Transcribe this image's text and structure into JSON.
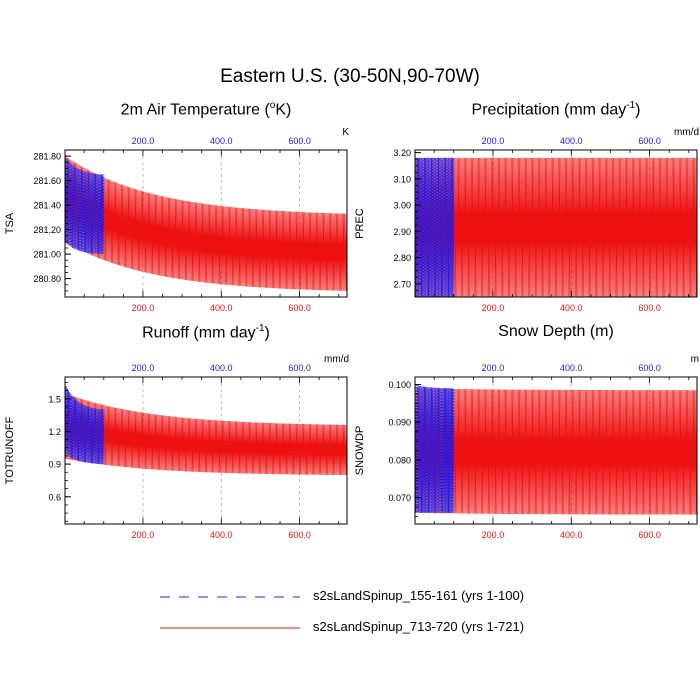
{
  "main_title": "Eastern U.S. (30-50N,90-70W)",
  "legend": [
    {
      "label": "s2sLandSpinup_155-161 (yrs 1-100)",
      "color": "#2222ee",
      "style": "dashed"
    },
    {
      "label": "s2sLandSpinup_713-720 (yrs 1-721)",
      "color": "#ee1111",
      "style": "solid"
    }
  ],
  "colors": {
    "blue": "#1a1aee",
    "red": "#ee1111",
    "grid": "#aaaaaa",
    "axis": "#000000"
  },
  "chart_data": [
    {
      "type": "line",
      "title": "2m Air Temperature (",
      "title_sup": "o",
      "title_suffix": "K)",
      "units": "K",
      "ylabel": "TSA",
      "xlim": [
        1,
        721
      ],
      "ylim": [
        280.65,
        281.85
      ],
      "xticks": [
        200,
        400,
        600
      ],
      "xtick_labels_bottom": [
        "200.0",
        "400.0",
        "600.0"
      ],
      "xtick_labels_top": [
        "200.0",
        "400.0",
        "600.0"
      ],
      "yticks": [
        280.8,
        281.0,
        281.2,
        281.4,
        281.6,
        281.8
      ],
      "ytick_labels": [
        "280.80",
        "281.00",
        "281.20",
        "281.40",
        "281.60",
        "281.80"
      ],
      "series": [
        {
          "name": "s2sLandSpinup_155-161 (yrs 1-100)",
          "color": "blue",
          "x_range": [
            1,
            100
          ],
          "max_start": 281.8,
          "max_end": 281.65,
          "min_start": 281.1,
          "min_end": 281.0
        },
        {
          "name": "s2sLandSpinup_713-720 (yrs 1-721)",
          "color": "red",
          "x_range": [
            1,
            721
          ],
          "max_start": 281.8,
          "max_end": 281.33,
          "min_start": 281.1,
          "min_end": 280.7
        }
      ]
    },
    {
      "type": "line",
      "title": "Precipitation (mm day",
      "title_sup": "-1",
      "title_suffix": ")",
      "units": "mm/d",
      "ylabel": "PREC",
      "xlim": [
        1,
        721
      ],
      "ylim": [
        2.65,
        3.21
      ],
      "xticks": [
        200,
        400,
        600
      ],
      "xtick_labels_bottom": [
        "200.0",
        "400.0",
        "600.0"
      ],
      "xtick_labels_top": [
        "200.0",
        "400.0",
        "600.0"
      ],
      "yticks": [
        2.7,
        2.8,
        2.9,
        3.0,
        3.1,
        3.2
      ],
      "ytick_labels": [
        "2.70",
        "2.80",
        "2.90",
        "3.00",
        "3.10",
        "3.20"
      ],
      "series": [
        {
          "name": "s2sLandSpinup_155-161 (yrs 1-100)",
          "color": "blue",
          "x_range": [
            1,
            100
          ],
          "max_start": 3.18,
          "max_end": 3.18,
          "min_start": 2.65,
          "min_end": 2.65
        },
        {
          "name": "s2sLandSpinup_713-720 (yrs 1-721)",
          "color": "red",
          "x_range": [
            1,
            721
          ],
          "max_start": 3.18,
          "max_end": 3.18,
          "min_start": 2.65,
          "min_end": 2.65
        }
      ]
    },
    {
      "type": "line",
      "title": "Runoff (mm day",
      "title_sup": "-1",
      "title_suffix": ")",
      "units": "mm/d",
      "ylabel": "TOTRUNOFF",
      "xlim": [
        1,
        721
      ],
      "ylim": [
        0.35,
        1.7
      ],
      "xticks": [
        200,
        400,
        600
      ],
      "xtick_labels_bottom": [
        "200.0",
        "400.0",
        "600.0"
      ],
      "xtick_labels_top": [
        "200.0",
        "400.0",
        "600.0"
      ],
      "yticks": [
        0.6,
        0.9,
        1.2,
        1.5
      ],
      "ytick_labels": [
        "0.6",
        "0.9",
        "1.2",
        "1.5"
      ],
      "series": [
        {
          "name": "s2sLandSpinup_155-161 (yrs 1-100)",
          "color": "blue",
          "x_range": [
            1,
            100
          ],
          "max_start": 1.64,
          "max_end": 1.4,
          "min_start": 1.0,
          "min_end": 0.9
        },
        {
          "name": "s2sLandSpinup_713-720 (yrs 1-721)",
          "color": "red",
          "x_range": [
            1,
            721
          ],
          "max_start": 1.55,
          "max_end": 1.26,
          "min_start": 0.95,
          "min_end": 0.8
        }
      ]
    },
    {
      "type": "line",
      "title": "Snow Depth (m)",
      "title_sup": "",
      "title_suffix": "",
      "units": "m",
      "ylabel": "SNOWDP",
      "xlim": [
        1,
        721
      ],
      "ylim": [
        0.063,
        0.102
      ],
      "xticks": [
        200,
        400,
        600
      ],
      "xtick_labels_bottom": [
        "200.0",
        "400.0",
        "600.0"
      ],
      "xtick_labels_top": [
        "200.0",
        "400.0",
        "600.0"
      ],
      "yticks": [
        0.07,
        0.08,
        0.09,
        0.1
      ],
      "ytick_labels": [
        "0.070",
        "0.080",
        "0.090",
        "0.100"
      ],
      "series": [
        {
          "name": "s2sLandSpinup_155-161 (yrs 1-100)",
          "color": "blue",
          "x_range": [
            1,
            100
          ],
          "max_start": 0.1,
          "max_end": 0.099,
          "min_start": 0.066,
          "min_end": 0.066
        },
        {
          "name": "s2sLandSpinup_713-720 (yrs 1-721)",
          "color": "red",
          "x_range": [
            1,
            721
          ],
          "max_start": 0.099,
          "max_end": 0.0985,
          "min_start": 0.066,
          "min_end": 0.0655
        }
      ]
    }
  ]
}
